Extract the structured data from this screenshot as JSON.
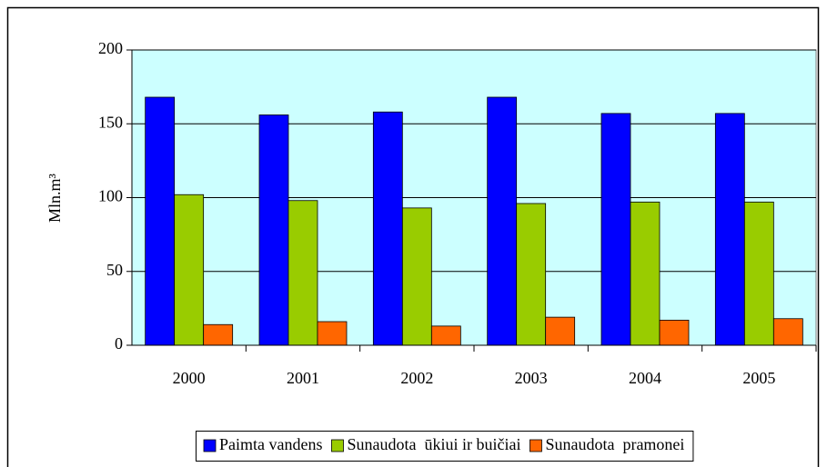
{
  "chart_data": {
    "type": "bar",
    "ylabel": "Mln.m³",
    "categories": [
      "2000",
      "2001",
      "2002",
      "2003",
      "2004",
      "2005"
    ],
    "series": [
      {
        "name": "Paimta vandens",
        "color": "#0000ff",
        "values": [
          168,
          156,
          158,
          168,
          157,
          157
        ]
      },
      {
        "name": "Sunaudota  ūkiui ir buičiai",
        "color": "#99cc00",
        "values": [
          102,
          98,
          93,
          96,
          97,
          97
        ]
      },
      {
        "name": "Sunaudota  pramonei",
        "color": "#ff6600",
        "values": [
          14,
          16,
          13,
          19,
          17,
          18
        ]
      }
    ],
    "ylim": [
      0,
      200
    ],
    "yticks": [
      0,
      50,
      100,
      150,
      200
    ],
    "grid": true,
    "legend": "bottom",
    "plot_background": "#ccffff"
  }
}
